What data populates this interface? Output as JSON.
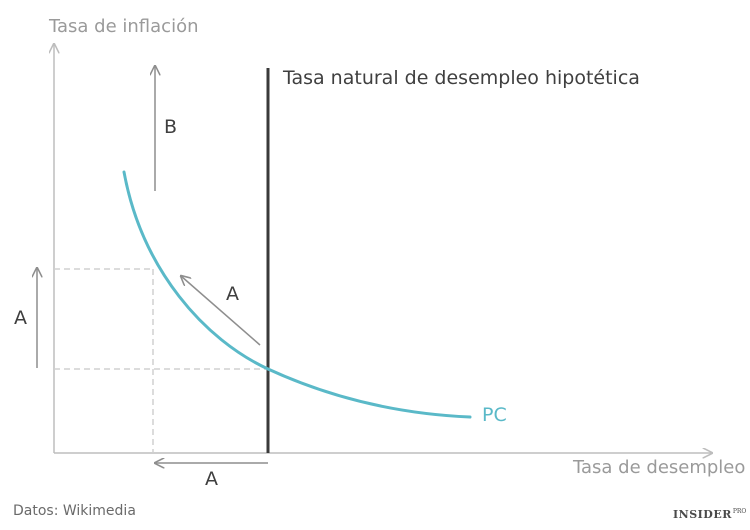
{
  "axes": {
    "y_title": "Tasa de inflación",
    "x_title": "Tasa de desempleo"
  },
  "natural_rate_label": "Tasa natural de desempleo hipotética",
  "curve_label": "PC",
  "markers": {
    "b_arrow_label": "B",
    "diagonal_arrow_label": "A",
    "left_arrow_label": "A",
    "bottom_arrow_label": "A"
  },
  "source": "Datos: Wikimedia",
  "brand": {
    "name": "INSIDER",
    "suffix": "PRO"
  },
  "colors": {
    "curve": "#5ab9c8",
    "natural_rate_line": "#3a3a3a",
    "axes": "#bdbdbd",
    "arrows": "#9a9a9a",
    "guides": "#d0d0d0"
  }
}
